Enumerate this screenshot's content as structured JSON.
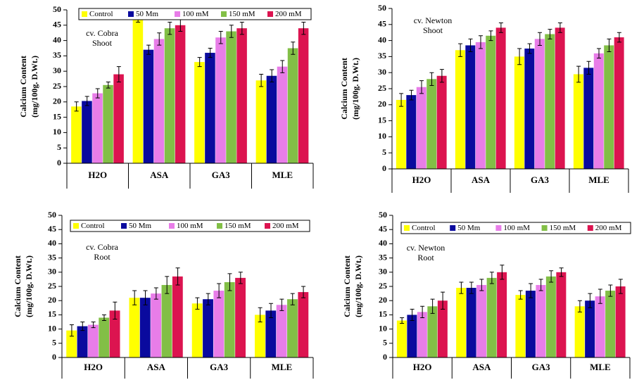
{
  "chart_data": [
    {
      "type": "bar",
      "y_label": [
        "Calcium Content",
        "(mg/100g. D.Wt.)"
      ],
      "annotation": [
        "cv. Cobra",
        "Shoot"
      ],
      "legend": true,
      "categories": [
        "H2O",
        "ASA",
        "GA3",
        "MLE"
      ],
      "ylim": [
        0,
        50
      ],
      "yticks": [
        0,
        5,
        10,
        15,
        20,
        25,
        30,
        35,
        40,
        45,
        50
      ],
      "series": [
        {
          "name": "Control",
          "color": "#ffff00",
          "values": [
            18.5,
            47.5,
            33,
            27
          ],
          "errors": [
            1.5,
            1.5,
            1.5,
            2
          ]
        },
        {
          "name": "50 Mm",
          "color": "#0a0a9e",
          "values": [
            20.3,
            37,
            36,
            28.5
          ],
          "errors": [
            1.5,
            1.5,
            1.5,
            2
          ]
        },
        {
          "name": "100 mM",
          "color": "#e87de8",
          "values": [
            22.8,
            40.5,
            41,
            31.5
          ],
          "errors": [
            1.5,
            2,
            2,
            2
          ]
        },
        {
          "name": "150 mM",
          "color": "#82bf46",
          "values": [
            25.5,
            44,
            43,
            37.5
          ],
          "errors": [
            1,
            2,
            2,
            2
          ]
        },
        {
          "name": "200 mM",
          "color": "#dc1450",
          "values": [
            29,
            45,
            44,
            44
          ],
          "errors": [
            2.5,
            2,
            2,
            2
          ]
        }
      ]
    },
    {
      "type": "bar",
      "y_label": [
        "Calcium Content",
        "(mg/100g. D.Wt.)"
      ],
      "annotation": [
        "cv. Newton",
        "Shoot"
      ],
      "legend": false,
      "categories": [
        "H2O",
        "ASA",
        "GA3",
        "MLE"
      ],
      "ylim": [
        0,
        50
      ],
      "yticks": [
        0,
        5,
        10,
        15,
        20,
        25,
        30,
        35,
        40,
        45,
        50
      ],
      "series": [
        {
          "name": "Control",
          "color": "#ffff00",
          "values": [
            21.5,
            37,
            35,
            29.5
          ],
          "errors": [
            2,
            2,
            2.5,
            2.5
          ]
        },
        {
          "name": "50 Mm",
          "color": "#0a0a9e",
          "values": [
            23,
            38.5,
            37.5,
            31.5
          ],
          "errors": [
            1.5,
            2,
            1.5,
            2
          ]
        },
        {
          "name": "100 mM",
          "color": "#e87de8",
          "values": [
            25.5,
            39.5,
            40.5,
            36
          ],
          "errors": [
            2,
            2,
            2,
            1.5
          ]
        },
        {
          "name": "150 mM",
          "color": "#82bf46",
          "values": [
            28,
            41.5,
            42,
            38.5
          ],
          "errors": [
            2,
            1.5,
            1.5,
            2
          ]
        },
        {
          "name": "200 mM",
          "color": "#dc1450",
          "values": [
            29,
            44,
            44,
            41
          ],
          "errors": [
            2,
            1.5,
            1.5,
            1.5
          ]
        }
      ]
    },
    {
      "type": "bar",
      "y_label": [
        "Calcium Content",
        "(mg/100g. D.Wt.)"
      ],
      "annotation": [
        "cv. Cobra",
        "Root"
      ],
      "legend": true,
      "categories": [
        "H2O",
        "ASA",
        "GA3",
        "MLE"
      ],
      "ylim": [
        0,
        50
      ],
      "yticks": [
        0,
        5,
        10,
        15,
        20,
        25,
        30,
        35,
        40,
        45,
        50
      ],
      "series": [
        {
          "name": "Control",
          "color": "#ffff00",
          "values": [
            9.5,
            21,
            19,
            15
          ],
          "errors": [
            2,
            2.5,
            2,
            2.5
          ]
        },
        {
          "name": "50 Mm",
          "color": "#0a0a9e",
          "values": [
            11,
            21,
            20.5,
            16.5
          ],
          "errors": [
            1.5,
            2.5,
            2,
            2.5
          ]
        },
        {
          "name": "100 mM",
          "color": "#e87de8",
          "values": [
            11.5,
            22.5,
            23.5,
            18.5
          ],
          "errors": [
            1,
            2,
            2.5,
            2
          ]
        },
        {
          "name": "150 mM",
          "color": "#82bf46",
          "values": [
            14,
            25.5,
            26.5,
            20.5
          ],
          "errors": [
            1,
            3,
            3,
            2
          ]
        },
        {
          "name": "200 mM",
          "color": "#dc1450",
          "values": [
            16.5,
            28.5,
            28,
            23
          ],
          "errors": [
            3,
            3,
            2,
            2
          ]
        }
      ]
    },
    {
      "type": "bar",
      "y_label": [
        "Calcium Content",
        "(mg/100g. D.Wt.)"
      ],
      "annotation": [
        "cv. Newton",
        "Root"
      ],
      "legend": true,
      "categories": [
        "H2O",
        "ASA",
        "GA3",
        "MLE"
      ],
      "ylim": [
        0,
        50
      ],
      "yticks": [
        0,
        5,
        10,
        15,
        20,
        25,
        30,
        35,
        40,
        45,
        50
      ],
      "series": [
        {
          "name": "Control",
          "color": "#ffff00",
          "values": [
            13,
            24.5,
            22,
            18
          ],
          "errors": [
            1,
            2,
            1.5,
            2
          ]
        },
        {
          "name": "50 Mm",
          "color": "#0a0a9e",
          "values": [
            15,
            24.5,
            23.5,
            20
          ],
          "errors": [
            2,
            2,
            2.5,
            2.5
          ]
        },
        {
          "name": "100 mM",
          "color": "#e87de8",
          "values": [
            16,
            25.5,
            25.5,
            21.5
          ],
          "errors": [
            2,
            2,
            2,
            2.5
          ]
        },
        {
          "name": "150 mM",
          "color": "#82bf46",
          "values": [
            18,
            28,
            28.5,
            23.5
          ],
          "errors": [
            2.5,
            2,
            2,
            2
          ]
        },
        {
          "name": "200 mM",
          "color": "#dc1450",
          "values": [
            20,
            30,
            30,
            25
          ],
          "errors": [
            3,
            2.5,
            1.5,
            2.5
          ]
        }
      ]
    }
  ]
}
